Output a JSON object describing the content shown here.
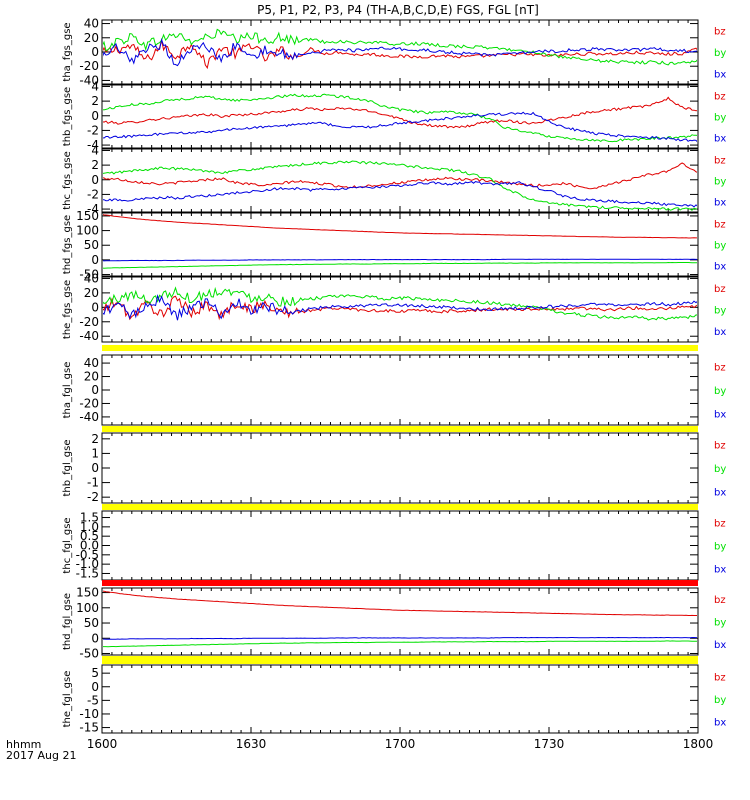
{
  "title": "P5, P1, P2, P3, P4 (TH-A,B,C,D,E) FGS, FGL [nT]",
  "x_axis": {
    "label_line1": "hhmm",
    "label_line2": "2017 Aug 21",
    "ticks": [
      "1600",
      "1630",
      "1700",
      "1730",
      "1800"
    ]
  },
  "colors": {
    "bz": "#e00000",
    "by": "#00e000",
    "bx": "#0000e0",
    "flag_yellow": "#ffff00",
    "flag_red": "#ff0000"
  },
  "chart_data": [
    {
      "type": "line",
      "ylabel": "tha_fgs_gse",
      "ylim": [
        -45,
        45
      ],
      "yticks": [
        "40",
        "20",
        "0",
        "-20",
        "-40"
      ],
      "legend": [
        "bz",
        "by",
        "bx"
      ],
      "series": [
        {
          "name": "bz",
          "values": [
            -2,
            4,
            8,
            -12,
            10,
            -6,
            14,
            -18,
            6,
            -4,
            12,
            -10,
            2,
            -8,
            4,
            -2,
            0,
            -4,
            -3,
            -5,
            -6,
            -7,
            -6,
            -5,
            -7,
            -6,
            -5,
            -4,
            -3,
            -4,
            -5,
            -4,
            -3,
            -2,
            -3,
            -2,
            -1,
            -2,
            -3,
            -2,
            4
          ]
        },
        {
          "name": "by",
          "values": [
            6,
            14,
            22,
            10,
            18,
            25,
            14,
            20,
            28,
            16,
            22,
            18,
            20,
            15,
            18,
            14,
            15,
            13,
            14,
            12,
            11,
            12,
            10,
            9,
            8,
            7,
            6,
            4,
            2,
            0,
            -4,
            -8,
            -10,
            -12,
            -13,
            -14,
            -15,
            -14,
            -16,
            -15,
            -12
          ]
        },
        {
          "name": "bx",
          "values": [
            -10,
            6,
            -14,
            2,
            12,
            -16,
            4,
            8,
            -12,
            10,
            -4,
            2,
            -2,
            -4,
            -2,
            2,
            4,
            2,
            4,
            5,
            4,
            3,
            2,
            0,
            -2,
            -3,
            -4,
            -3,
            -2,
            0,
            1,
            2,
            3,
            4,
            3,
            2,
            3,
            4,
            3,
            2,
            0
          ]
        }
      ]
    },
    {
      "type": "line",
      "ylabel": "thb_fgs_gse",
      "ylim": [
        -4.4,
        4.2
      ],
      "yticks": [
        "4",
        "2",
        "0",
        "-2",
        "-4"
      ],
      "legend": [
        "bz",
        "by",
        "bx"
      ],
      "series": [
        {
          "name": "bz",
          "values": [
            -0.8,
            -1.0,
            -0.9,
            -0.6,
            -0.4,
            -0.2,
            0.0,
            0.2,
            -0.1,
            0.1,
            0.2,
            0.4,
            0.6,
            0.8,
            1.0,
            0.8,
            1.0,
            0.9,
            0.6,
            0.2,
            -0.4,
            -1.0,
            -1.3,
            -1.5,
            -1.6,
            -1.2,
            -0.8,
            -0.6,
            -0.9,
            -1.0,
            -0.6,
            -0.2,
            0.2,
            0.6,
            0.8,
            1.0,
            1.2,
            1.5,
            2.4,
            1.0,
            0.8
          ]
        },
        {
          "name": "by",
          "values": [
            0.8,
            1.2,
            1.5,
            1.6,
            2.0,
            2.2,
            2.4,
            2.6,
            2.3,
            2.1,
            2.2,
            2.4,
            2.6,
            2.8,
            2.7,
            2.8,
            2.6,
            2.4,
            2.0,
            1.2,
            0.8,
            0.6,
            0.4,
            0.5,
            0.4,
            0.2,
            -0.4,
            -1.6,
            -2.0,
            -2.4,
            -2.8,
            -3.0,
            -3.2,
            -3.3,
            -3.4,
            -3.3,
            -3.2,
            -3.1,
            -3.0,
            -2.9,
            -2.6
          ]
        },
        {
          "name": "bx",
          "values": [
            -3.0,
            -2.9,
            -2.8,
            -2.6,
            -2.5,
            -2.4,
            -2.3,
            -2.2,
            -2.0,
            -1.8,
            -1.7,
            -1.5,
            -1.4,
            -1.2,
            -1.0,
            -1.1,
            -1.4,
            -1.6,
            -1.5,
            -1.3,
            -1.0,
            -0.8,
            -0.6,
            -0.4,
            -0.2,
            0.0,
            0.2,
            0.2,
            0.4,
            0.3,
            -0.8,
            -1.6,
            -2.0,
            -2.4,
            -2.6,
            -2.8,
            -2.9,
            -3.0,
            -3.1,
            -3.3,
            -3.5
          ]
        }
      ]
    },
    {
      "type": "line",
      "ylabel": "thc_fgs_gse",
      "ylim": [
        -4.4,
        4.2
      ],
      "yticks": [
        "4",
        "2",
        "0",
        "-2",
        "-4"
      ],
      "legend": [
        "bz",
        "by",
        "bx"
      ],
      "series": [
        {
          "name": "bz",
          "values": [
            0.2,
            0.1,
            -0.2,
            -0.4,
            -0.6,
            -0.4,
            -0.2,
            0.0,
            0.2,
            -0.4,
            -0.6,
            -0.8,
            -0.5,
            -0.2,
            -0.4,
            -0.6,
            -0.9,
            -1.0,
            -0.8,
            -0.6,
            -0.4,
            -0.2,
            0.0,
            0.2,
            0.1,
            0.0,
            -0.2,
            -0.4,
            -0.6,
            -0.8,
            -0.7,
            -0.5,
            -0.9,
            -1.2,
            -0.6,
            -0.2,
            0.4,
            0.8,
            1.2,
            2.2,
            1.0
          ]
        },
        {
          "name": "by",
          "values": [
            0.8,
            1.0,
            1.2,
            1.4,
            1.6,
            1.5,
            1.4,
            1.2,
            1.0,
            1.2,
            1.4,
            1.6,
            1.8,
            2.0,
            2.2,
            2.3,
            2.4,
            2.4,
            2.3,
            2.2,
            2.0,
            1.8,
            1.6,
            1.4,
            1.2,
            0.6,
            0.2,
            -1.2,
            -2.0,
            -2.8,
            -3.2,
            -3.4,
            -3.6,
            -3.7,
            -3.8,
            -3.8,
            -3.9,
            -3.9,
            -4.0,
            -4.0,
            -4.0
          ]
        },
        {
          "name": "bx",
          "values": [
            -2.8,
            -2.7,
            -2.8,
            -2.6,
            -2.4,
            -2.5,
            -2.3,
            -2.2,
            -2.0,
            -1.8,
            -1.6,
            -1.4,
            -1.2,
            -1.2,
            -1.4,
            -1.3,
            -1.2,
            -1.1,
            -1.0,
            -0.9,
            -0.8,
            -0.6,
            -0.4,
            -0.6,
            -0.5,
            -0.4,
            -0.6,
            -0.5,
            -0.4,
            -1.0,
            -1.5,
            -2.2,
            -2.6,
            -2.8,
            -2.9,
            -3.0,
            -3.1,
            -3.2,
            -3.4,
            -3.5,
            -3.6
          ]
        }
      ]
    },
    {
      "type": "line",
      "ylabel": "thd_fgs_gse",
      "ylim": [
        -55,
        160
      ],
      "yticks": [
        "150",
        "100",
        "50",
        "0",
        "-50"
      ],
      "legend": [
        "bz",
        "by",
        "bx"
      ],
      "series": [
        {
          "name": "bz",
          "values": [
            155,
            148,
            142,
            137,
            133,
            129,
            126,
            123,
            120,
            117,
            114,
            111,
            108,
            106,
            104,
            102,
            100,
            98,
            96,
            94,
            92,
            91,
            90,
            89,
            88,
            87,
            86,
            85,
            84,
            83,
            82,
            81,
            80,
            79,
            78,
            77,
            77,
            76,
            76,
            75,
            75
          ]
        },
        {
          "name": "by",
          "values": [
            -28,
            -27,
            -26,
            -25,
            -24,
            -23,
            -22,
            -21,
            -20,
            -19,
            -18,
            -17,
            -16,
            -16,
            -15,
            -15,
            -14,
            -14,
            -14,
            -13,
            -13,
            -13,
            -12,
            -12,
            -12,
            -12,
            -11,
            -11,
            -11,
            -11,
            -10,
            -10,
            -10,
            -10,
            -10,
            -10,
            -10,
            -10,
            -9,
            -9,
            -10
          ]
        },
        {
          "name": "bx",
          "values": [
            -3,
            -3,
            -2,
            -2,
            -2,
            -2,
            -1,
            -1,
            -1,
            -1,
            0,
            0,
            0,
            0,
            0,
            0,
            1,
            1,
            1,
            1,
            1,
            1,
            1,
            1,
            1,
            1,
            1,
            2,
            2,
            2,
            2,
            2,
            2,
            2,
            2,
            2,
            2,
            2,
            2,
            2,
            2
          ]
        }
      ]
    },
    {
      "type": "line",
      "ylabel": "the_fgs_gse",
      "ylim": [
        -48,
        42
      ],
      "yticks": [
        "40",
        "20",
        "0",
        "-20",
        "-40"
      ],
      "legend": [
        "bz",
        "by",
        "bx"
      ],
      "series": [
        {
          "name": "bz",
          "values": [
            -4,
            8,
            -14,
            6,
            -10,
            12,
            -8,
            4,
            -12,
            6,
            -2,
            4,
            -6,
            -8,
            -4,
            -2,
            -1,
            -3,
            -4,
            -5,
            -6,
            -4,
            -5,
            -6,
            -5,
            -4,
            -3,
            -2,
            -3,
            -2,
            -3,
            -2,
            -1,
            -2,
            -3,
            -2,
            -1,
            -2,
            -1,
            0,
            2
          ]
        },
        {
          "name": "by",
          "values": [
            6,
            12,
            18,
            10,
            16,
            22,
            12,
            18,
            24,
            20,
            14,
            16,
            8,
            10,
            12,
            14,
            15,
            16,
            14,
            12,
            13,
            12,
            11,
            10,
            9,
            8,
            6,
            4,
            2,
            0,
            -4,
            -8,
            -10,
            -12,
            -14,
            -15,
            -14,
            -16,
            -15,
            -14,
            -12
          ]
        },
        {
          "name": "bx",
          "values": [
            -10,
            4,
            -12,
            6,
            10,
            -14,
            2,
            6,
            -10,
            8,
            -6,
            2,
            -4,
            -6,
            -2,
            0,
            2,
            1,
            3,
            4,
            3,
            2,
            1,
            0,
            -1,
            -2,
            -3,
            -2,
            -1,
            0,
            1,
            2,
            3,
            4,
            3,
            2,
            3,
            5,
            4,
            6,
            8
          ]
        }
      ]
    },
    {
      "type": "line",
      "ylabel": "tha_fgl_gse",
      "ylim": [
        -52,
        52
      ],
      "yticks": [
        "40",
        "20",
        "0",
        "-20",
        "-40"
      ],
      "legend": [
        "bz",
        "by",
        "bx"
      ],
      "series": []
    },
    {
      "type": "line",
      "ylabel": "thb_fgl_gse",
      "ylim": [
        -2.4,
        2.4
      ],
      "yticks": [
        "2",
        "1",
        "0",
        "-1",
        "-2"
      ],
      "legend": [
        "bz",
        "by",
        "bx"
      ],
      "series": []
    },
    {
      "type": "line",
      "ylabel": "thc_fgl_gse",
      "ylim": [
        -1.85,
        1.85
      ],
      "yticks": [
        "1.5",
        "1.0",
        "0.5",
        "0.0",
        "-0.5",
        "-1.0",
        "-1.5"
      ],
      "legend": [
        "bz",
        "by",
        "bx"
      ],
      "series": []
    },
    {
      "type": "line",
      "ylabel": "thd_fgl_gse",
      "ylim": [
        -55,
        165
      ],
      "yticks": [
        "150",
        "100",
        "50",
        "0",
        "-50"
      ],
      "legend": [
        "bz",
        "by",
        "bx"
      ],
      "series": [
        {
          "name": "bz",
          "values": [
            155,
            148,
            142,
            137,
            133,
            129,
            126,
            123,
            120,
            117,
            114,
            111,
            108,
            106,
            104,
            102,
            100,
            98,
            96,
            94,
            92,
            91,
            90,
            89,
            88,
            87,
            86,
            85,
            84,
            83,
            82,
            81,
            80,
            79,
            78,
            77,
            77,
            76,
            76,
            75,
            75
          ]
        },
        {
          "name": "by",
          "values": [
            -28,
            -27,
            -26,
            -25,
            -24,
            -23,
            -22,
            -21,
            -20,
            -19,
            -18,
            -17,
            -16,
            -16,
            -15,
            -15,
            -14,
            -14,
            -14,
            -13,
            -13,
            -13,
            -12,
            -12,
            -12,
            -12,
            -11,
            -11,
            -11,
            -11,
            -10,
            -10,
            -10,
            -10,
            -10,
            -10,
            -10,
            -10,
            -9,
            -9,
            -10
          ]
        },
        {
          "name": "bx",
          "values": [
            -3,
            -3,
            -2,
            -2,
            -2,
            -2,
            -1,
            -1,
            -1,
            -1,
            0,
            0,
            0,
            0,
            0,
            0,
            1,
            1,
            1,
            1,
            1,
            1,
            1,
            1,
            1,
            1,
            1,
            2,
            2,
            2,
            2,
            2,
            2,
            2,
            2,
            2,
            2,
            2,
            2,
            2,
            2
          ]
        }
      ]
    },
    {
      "type": "line",
      "ylabel": "the_fgl_gse",
      "ylim": [
        -17,
        8
      ],
      "yticks": [
        "5",
        "0",
        "-5",
        "-10",
        "-15"
      ],
      "legend": [
        "bz",
        "by",
        "bx"
      ],
      "series": []
    }
  ]
}
